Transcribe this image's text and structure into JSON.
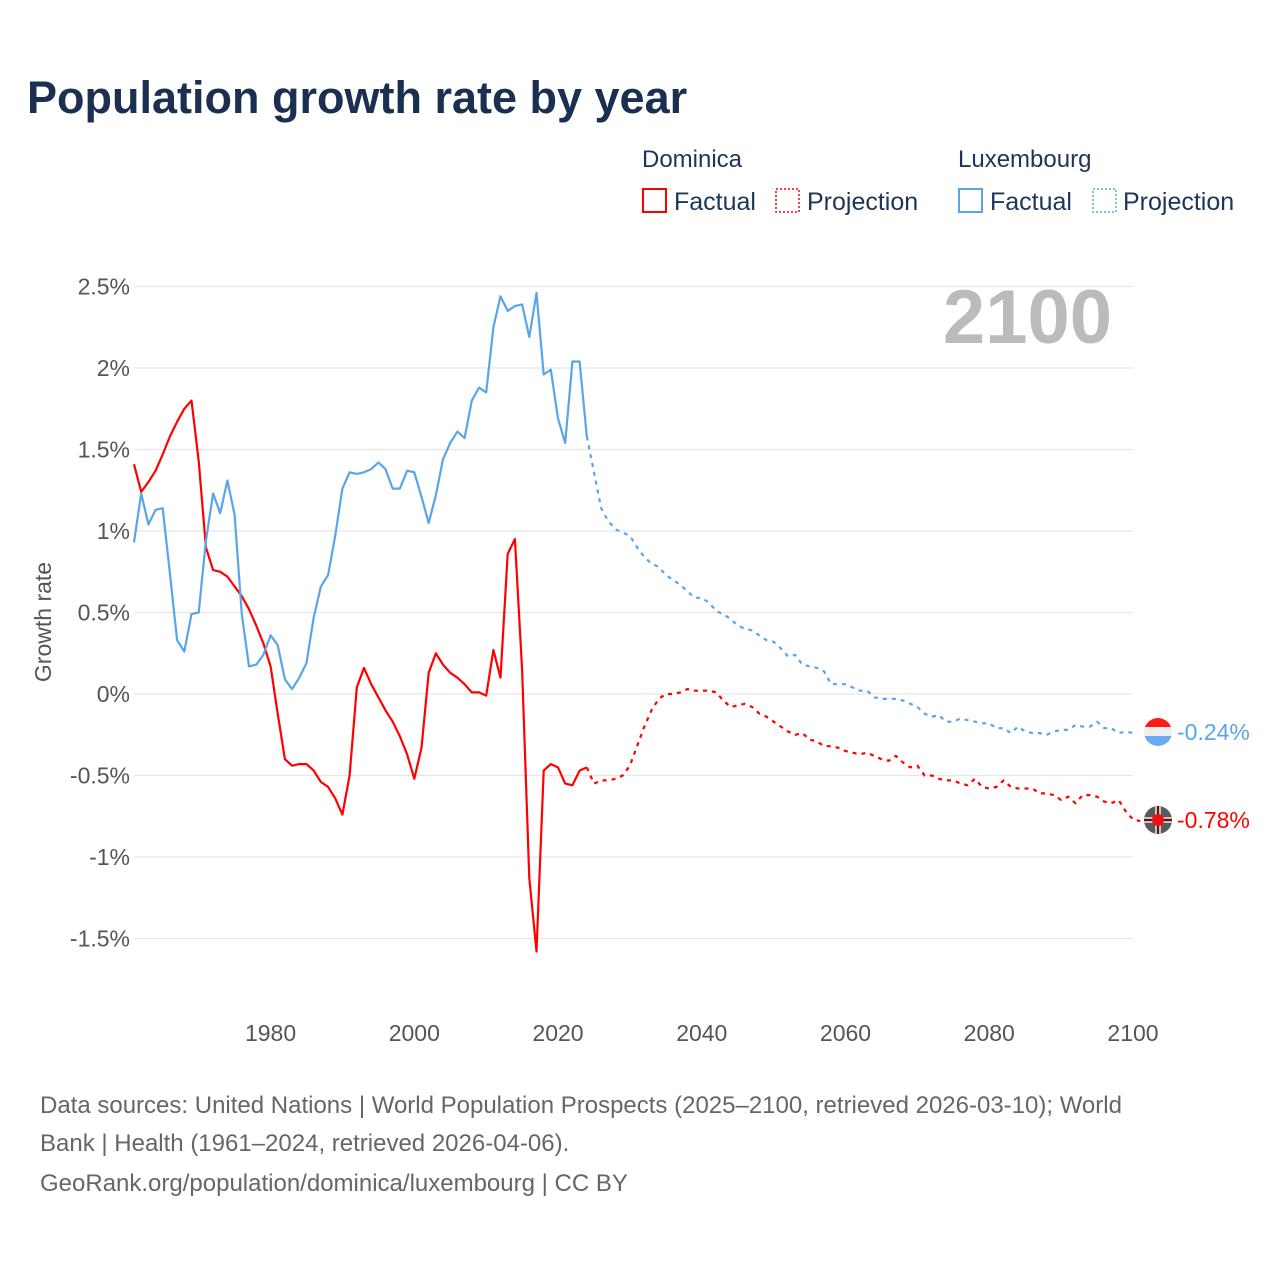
{
  "title": "Population growth rate by year",
  "legend": {
    "groups": [
      {
        "name": "Dominica",
        "color": "#ff0000",
        "items": [
          "Factual",
          "Projection"
        ]
      },
      {
        "name": "Luxembourg",
        "color": "#5aa5ea",
        "items": [
          "Factual",
          "Projection"
        ]
      }
    ]
  },
  "current_year": "2100",
  "footer": {
    "line1": "Data sources: United Nations | World Population Prospects (2025–2100, retrieved 2026-03-10); World",
    "line2": "Bank | Health (1961–2024, retrieved 2026-04-06).",
    "line3": "GeoRank.org/population/dominica/luxembourg | CC BY"
  },
  "chart_data": {
    "type": "line",
    "title": "Population growth rate by year",
    "xlabel": "",
    "ylabel": "Growth rate",
    "xlim": [
      1961,
      2100
    ],
    "ylim": [
      -1.75,
      2.6
    ],
    "x_ticks": [
      1980,
      2000,
      2020,
      2040,
      2060,
      2080,
      2100
    ],
    "x_tick_labels": [
      "1980",
      "2000",
      "2020",
      "2040",
      "2060",
      "2080",
      "2100"
    ],
    "y_ticks": [
      2.5,
      2,
      1.5,
      1,
      0.5,
      0,
      -0.5,
      -1,
      -1.5
    ],
    "y_tick_labels": [
      "2.5%",
      "2%",
      "1.5%",
      "1%",
      "0.5%",
      "0%",
      "-0.5%",
      "-1%",
      "-1.5%"
    ],
    "grid": true,
    "legend_position": "top-right",
    "series": [
      {
        "name": "Dominica",
        "color": "#ff0000",
        "end_label": "-0.78%",
        "factual": {
          "x_start": 1961,
          "values": [
            1.41,
            1.24,
            1.3,
            1.37,
            1.47,
            1.58,
            1.67,
            1.75,
            1.8,
            1.43,
            0.9,
            0.76,
            0.75,
            0.72,
            0.66,
            0.6,
            0.52,
            0.42,
            0.31,
            0.17,
            -0.12,
            -0.4,
            -0.44,
            -0.43,
            -0.43,
            -0.47,
            -0.54,
            -0.57,
            -0.64,
            -0.74,
            -0.5,
            0.04,
            0.16,
            0.06,
            -0.02,
            -0.1,
            -0.17,
            -0.26,
            -0.37,
            -0.52,
            -0.33,
            0.13,
            0.25,
            0.18,
            0.13,
            0.1,
            0.06,
            0.01,
            0.01,
            -0.01,
            0.27,
            0.1,
            0.86,
            0.95,
            0.15,
            -1.13,
            -1.58,
            -0.47,
            -0.43,
            -0.45,
            -0.55,
            -0.56,
            -0.47,
            -0.45
          ]
        },
        "projection": {
          "x_start": 2024,
          "values": [
            -0.45,
            -0.55,
            -0.53,
            -0.53,
            -0.52,
            -0.5,
            -0.44,
            -0.32,
            -0.2,
            -0.1,
            -0.03,
            0.0,
            0.0,
            0.01,
            0.03,
            0.02,
            0.02,
            0.02,
            0.01,
            -0.04,
            -0.08,
            -0.07,
            -0.06,
            -0.08,
            -0.12,
            -0.14,
            -0.17,
            -0.2,
            -0.23,
            -0.25,
            -0.24,
            -0.28,
            -0.29,
            -0.32,
            -0.32,
            -0.33,
            -0.35,
            -0.36,
            -0.37,
            -0.36,
            -0.38,
            -0.4,
            -0.41,
            -0.38,
            -0.42,
            -0.45,
            -0.44,
            -0.5,
            -0.5,
            -0.52,
            -0.53,
            -0.53,
            -0.55,
            -0.56,
            -0.52,
            -0.57,
            -0.58,
            -0.57,
            -0.53,
            -0.57,
            -0.58,
            -0.58,
            -0.58,
            -0.61,
            -0.61,
            -0.62,
            -0.65,
            -0.63,
            -0.67,
            -0.62,
            -0.62,
            -0.63,
            -0.66,
            -0.67,
            -0.65,
            -0.72,
            -0.77,
            -0.78
          ]
        }
      },
      {
        "name": "Luxembourg",
        "color": "#5aa5ea",
        "end_label": "-0.24%",
        "factual": {
          "x_start": 1961,
          "values": [
            0.93,
            1.23,
            1.04,
            1.13,
            1.14,
            0.74,
            0.33,
            0.26,
            0.49,
            0.5,
            0.94,
            1.23,
            1.11,
            1.31,
            1.1,
            0.49,
            0.17,
            0.18,
            0.24,
            0.36,
            0.3,
            0.09,
            0.03,
            0.1,
            0.19,
            0.47,
            0.66,
            0.73,
            0.97,
            1.26,
            1.36,
            1.35,
            1.36,
            1.38,
            1.42,
            1.38,
            1.26,
            1.26,
            1.37,
            1.36,
            1.21,
            1.05,
            1.22,
            1.44,
            1.54,
            1.61,
            1.57,
            1.8,
            1.88,
            1.85,
            2.25,
            2.44,
            2.35,
            2.38,
            2.39,
            2.19,
            2.46,
            1.96,
            1.99,
            1.69,
            1.54,
            2.04,
            2.04,
            1.58
          ]
        },
        "projection": {
          "x_start": 2024,
          "values": [
            1.58,
            1.36,
            1.14,
            1.06,
            1.01,
            0.99,
            0.97,
            0.9,
            0.84,
            0.8,
            0.78,
            0.73,
            0.7,
            0.67,
            0.63,
            0.59,
            0.59,
            0.56,
            0.51,
            0.49,
            0.46,
            0.42,
            0.4,
            0.39,
            0.36,
            0.33,
            0.32,
            0.28,
            0.23,
            0.24,
            0.18,
            0.17,
            0.16,
            0.14,
            0.06,
            0.06,
            0.06,
            0.04,
            0.02,
            0.02,
            -0.02,
            -0.03,
            -0.03,
            -0.03,
            -0.04,
            -0.06,
            -0.08,
            -0.12,
            -0.14,
            -0.13,
            -0.17,
            -0.17,
            -0.15,
            -0.16,
            -0.17,
            -0.18,
            -0.18,
            -0.21,
            -0.21,
            -0.24,
            -0.2,
            -0.23,
            -0.24,
            -0.24,
            -0.25,
            -0.23,
            -0.22,
            -0.22,
            -0.19,
            -0.2,
            -0.2,
            -0.17,
            -0.21,
            -0.21,
            -0.24,
            -0.23,
            -0.24
          ]
        }
      }
    ]
  }
}
